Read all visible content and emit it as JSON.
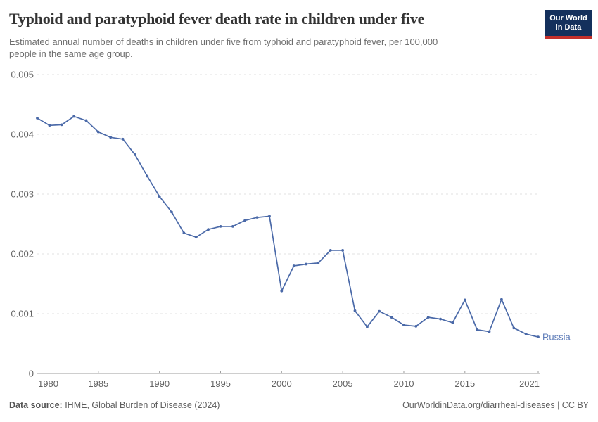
{
  "header": {
    "title": "Typhoid and paratyphoid fever death rate in children under five",
    "subtitle_lines": [
      "Estimated annual number of deaths in children under five from typhoid and paratyphoid fever, per 100,000",
      "people in the same age group."
    ]
  },
  "branding": {
    "line1": "Our World",
    "line2": "in Data",
    "bg_color": "#14305c",
    "accent_color": "#c4302b"
  },
  "footer": {
    "source_label": "Data source:",
    "source_text": " IHME, Global Burden of Disease (2024)",
    "credit": "OurWorldinData.org/diarrheal-diseases | CC BY"
  },
  "chart_data": {
    "type": "line",
    "title": "Typhoid and paratyphoid fever death rate in children under five",
    "xlabel": "",
    "ylabel": "",
    "xlim": [
      1980,
      2021
    ],
    "ylim": [
      0,
      0.005
    ],
    "xticks": [
      1980,
      1985,
      1990,
      1995,
      2000,
      2005,
      2010,
      2015,
      2021
    ],
    "yticks": [
      0,
      0.001,
      0.002,
      0.003,
      0.004,
      0.005
    ],
    "ytick_labels": [
      "0",
      "0.001",
      "0.002",
      "0.003",
      "0.004",
      "0.005"
    ],
    "grid": "dashed-horizontal",
    "legend": "end-of-line-label",
    "colors": {
      "line": "#4a69a8",
      "series_label": "#5f7db9",
      "gridline": "#e0e0e0",
      "axis": "#9e9e9e",
      "tick_text": "#636363"
    },
    "series": [
      {
        "name": "Russia",
        "color": "#4a69a8",
        "label_color": "#5f7db9",
        "x": [
          1980,
          1981,
          1982,
          1983,
          1984,
          1985,
          1986,
          1987,
          1988,
          1989,
          1990,
          1991,
          1992,
          1993,
          1994,
          1995,
          1996,
          1997,
          1998,
          1999,
          2000,
          2001,
          2002,
          2003,
          2004,
          2005,
          2006,
          2007,
          2008,
          2009,
          2010,
          2011,
          2012,
          2013,
          2014,
          2015,
          2016,
          2017,
          2018,
          2019,
          2020,
          2021
        ],
        "y": [
          0.00427,
          0.00415,
          0.00416,
          0.0043,
          0.00423,
          0.00404,
          0.00395,
          0.00392,
          0.00366,
          0.0033,
          0.00296,
          0.0027,
          0.00235,
          0.00228,
          0.00241,
          0.00246,
          0.00246,
          0.00256,
          0.00261,
          0.00263,
          0.00138,
          0.0018,
          0.00183,
          0.00185,
          0.00206,
          0.00206,
          0.00105,
          0.00078,
          0.00104,
          0.00094,
          0.00081,
          0.00079,
          0.00094,
          0.00091,
          0.00085,
          0.00123,
          0.00073,
          0.0007,
          0.00124,
          0.00076,
          0.00066,
          0.00061
        ]
      }
    ]
  }
}
